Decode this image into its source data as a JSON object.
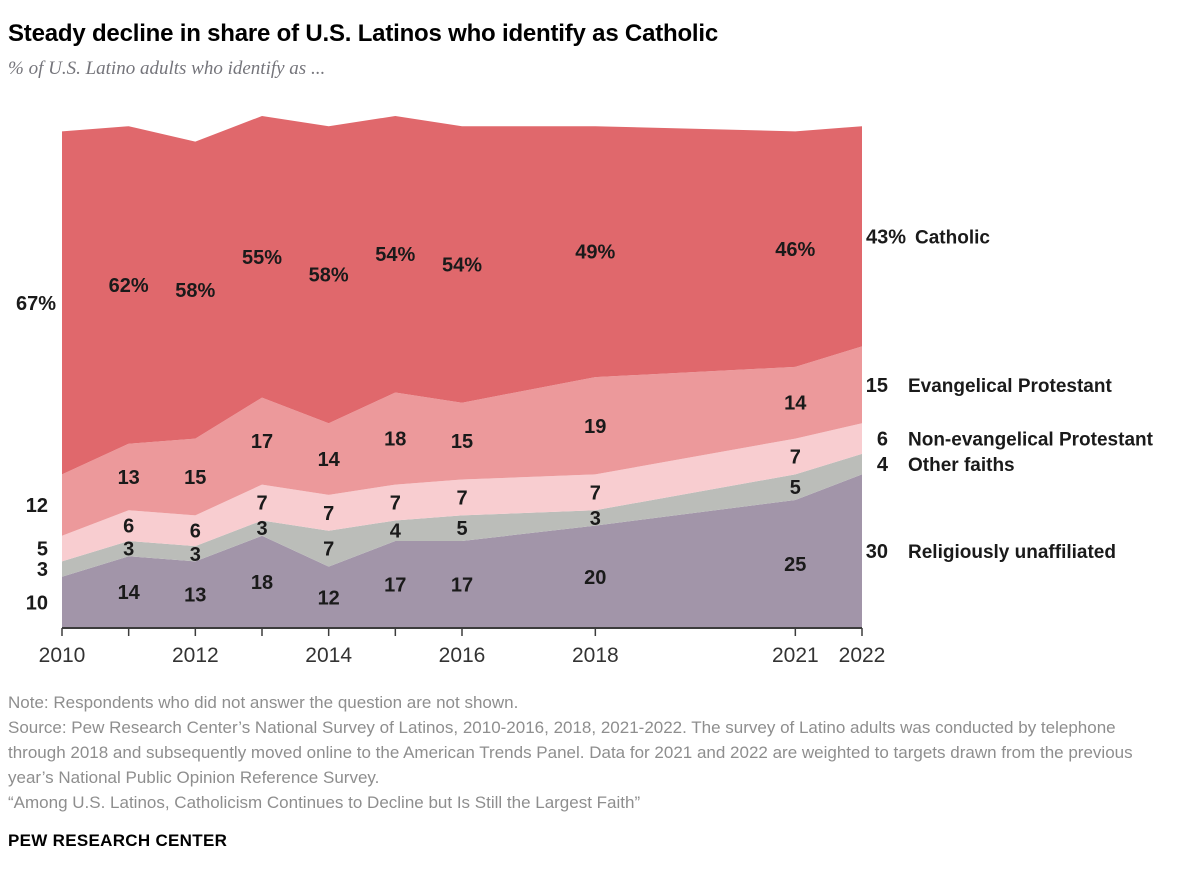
{
  "chart_data": {
    "type": "area",
    "stacked": true,
    "title": "Steady decline in share of U.S. Latinos who identify as Catholic",
    "subtitle": "% of U.S. Latino adults who identify as ...",
    "x": [
      2010,
      2011,
      2012,
      2013,
      2014,
      2015,
      2016,
      2018,
      2021,
      2022
    ],
    "x_axis_label_years": [
      2010,
      2012,
      2014,
      2016,
      2018,
      2021,
      2022
    ],
    "ylim": [
      0,
      100
    ],
    "grid": false,
    "legend_position": "right",
    "series": [
      {
        "name": "Religiously unaffiliated",
        "color": "#a295a9",
        "values": [
          10,
          14,
          13,
          18,
          12,
          17,
          17,
          20,
          25,
          30
        ]
      },
      {
        "name": "Other faiths",
        "color": "#bbbdb9",
        "values": [
          3,
          3,
          3,
          3,
          7,
          4,
          5,
          3,
          5,
          4
        ]
      },
      {
        "name": "Non-evangelical Protestant",
        "color": "#f8cdd0",
        "values": [
          5,
          6,
          6,
          7,
          7,
          7,
          7,
          7,
          7,
          6
        ]
      },
      {
        "name": "Evangelical Protestant",
        "color": "#ec999b",
        "values": [
          12,
          13,
          15,
          17,
          14,
          18,
          15,
          19,
          14,
          15
        ]
      },
      {
        "name": "Catholic",
        "color": "#e0686c",
        "values": [
          67,
          62,
          58,
          55,
          58,
          54,
          54,
          49,
          46,
          43
        ],
        "suffix": "%"
      }
    ],
    "axis_color": "#3c3c3c"
  },
  "footer": {
    "note": "Note: Respondents who did not answer the question are not shown.",
    "source": "Source: Pew Research Center’s National Survey of Latinos, 2010-2016, 2018, 2021-2022. The survey of Latino adults was conducted by telephone through 2018 and subsequently moved online to the American Trends Panel. Data for 2021 and 2022 are weighted to targets drawn from the previous year’s National Public Opinion Reference Survey.",
    "quote": "“Among U.S. Latinos, Catholicism Continues to Decline but Is Still the Largest Faith”",
    "brand": "PEW RESEARCH CENTER"
  }
}
